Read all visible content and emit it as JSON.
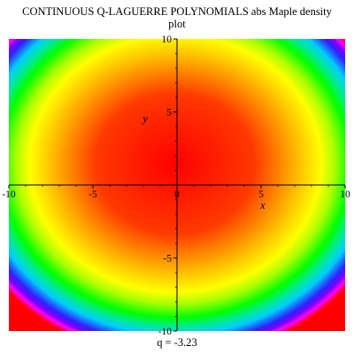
{
  "chart_data": {
    "type": "heatmap",
    "title_line1": "CONTINUOUS Q-LAGUERRE POLYNOMIALS abs Maple density",
    "title_line2": "plot",
    "xlabel": "x",
    "ylabel": "y",
    "xlim": [
      -10,
      10
    ],
    "ylim": [
      -10,
      10
    ],
    "x_ticks": [
      {
        "value": -10,
        "label": "-10"
      },
      {
        "value": -5,
        "label": "-5"
      },
      {
        "value": 0,
        "label": "0"
      },
      {
        "value": 5,
        "label": "5"
      },
      {
        "value": 10,
        "label": "10"
      }
    ],
    "y_ticks": [
      {
        "value": 10,
        "label": "10"
      },
      {
        "value": 5,
        "label": "5"
      },
      {
        "value": -5,
        "label": "-5"
      },
      {
        "value": -10,
        "label": "-10"
      }
    ],
    "colormap": [
      "#ff0000",
      "#ff3a00",
      "#ff8a00",
      "#ffcc00",
      "#ffff00",
      "#aaff00",
      "#00ff00",
      "#00e8a0",
      "#00ccff",
      "#2060ff",
      "#3020ff",
      "#8000ff",
      "#ff00ff",
      "#ff0000"
    ],
    "grid": false,
    "caption_label": "q =",
    "caption_value": "-3.23"
  }
}
